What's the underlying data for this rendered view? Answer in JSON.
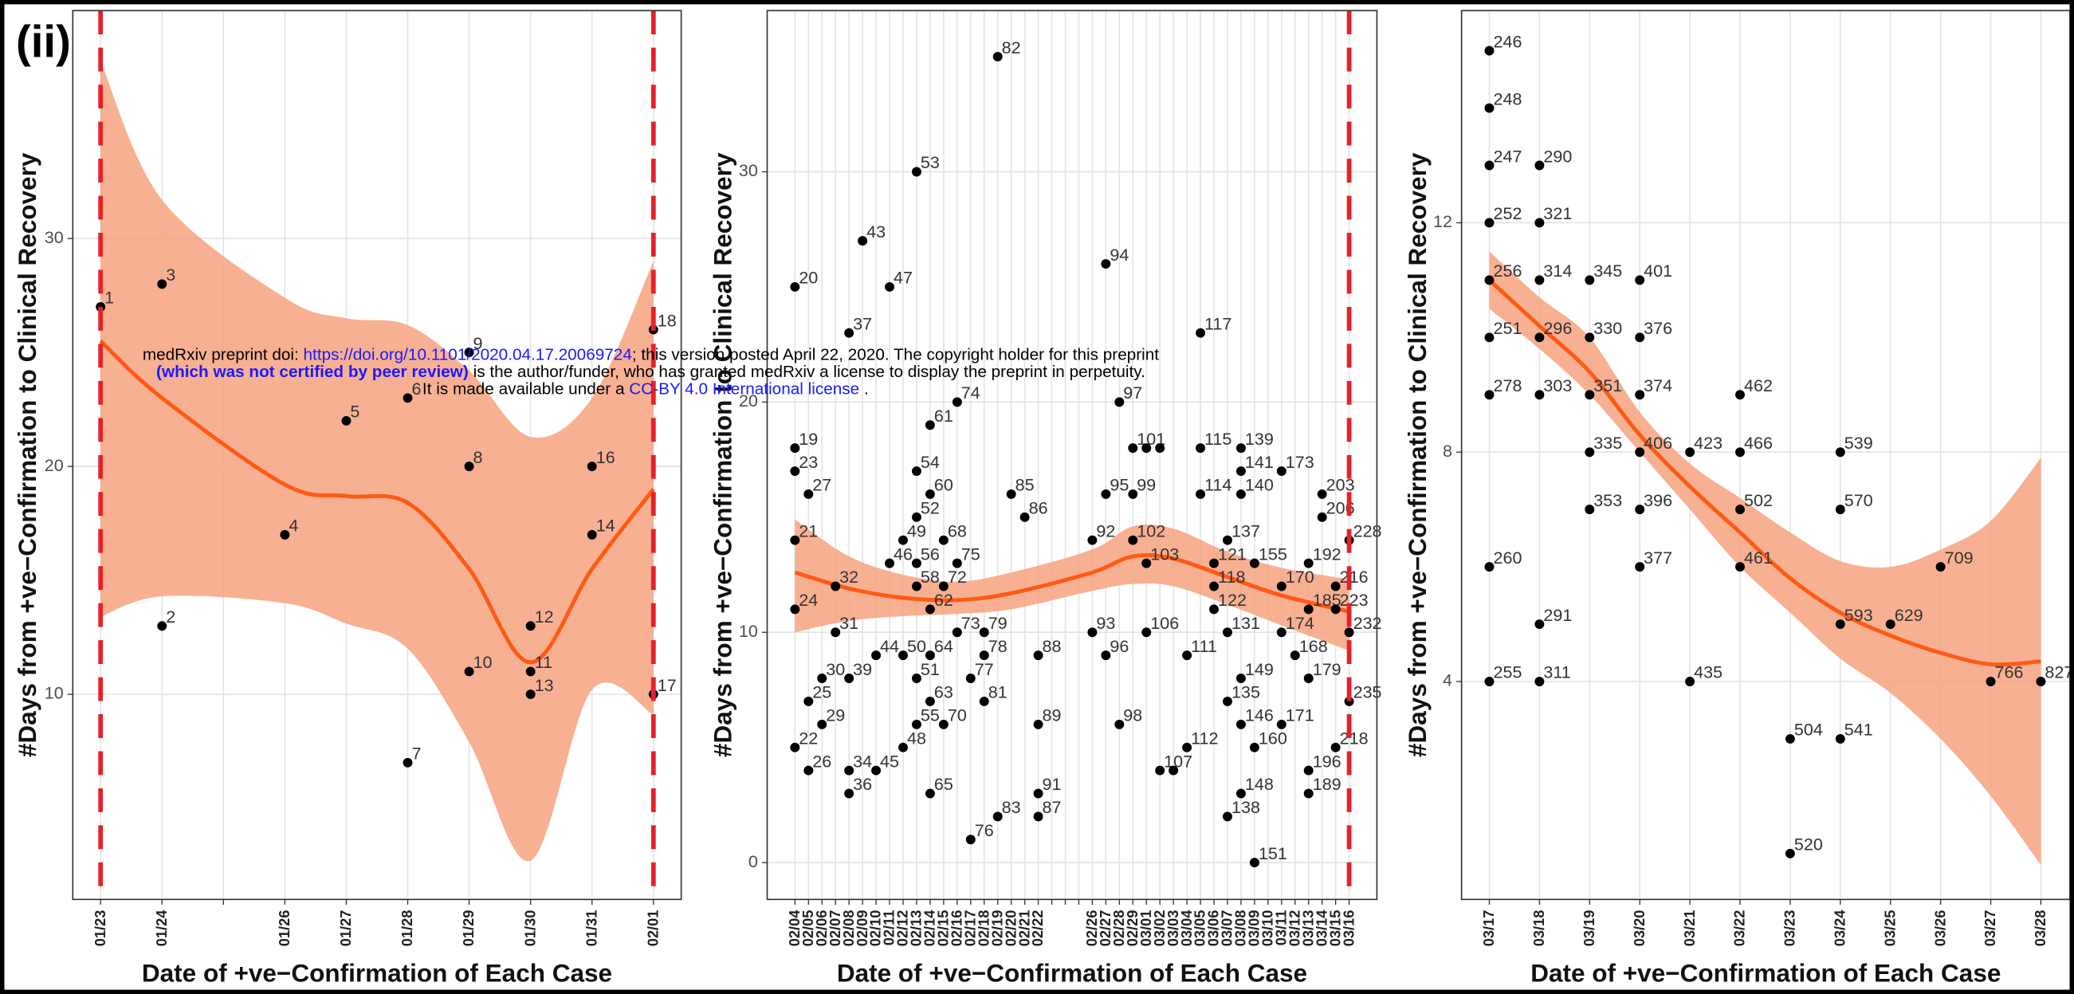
{
  "figure_label": "(ii)",
  "watermark": {
    "line1_prefix": "medRxiv preprint doi: ",
    "doi_link": "https://doi.org/10.1101/2020.04.17.20069724",
    "line1_suffix": "; this version posted April 22, 2020. The copyright holder for this preprint",
    "line2_bold": "(which was not certified by peer review)",
    "line2_rest": " is the author/funder, who has granted medRxiv a license to display the preprint in perpetuity.",
    "line3_prefix": "It is made available under a ",
    "license_link": "CC-BY 4.0 International license",
    "line3_suffix": " ."
  },
  "chart_data": [
    {
      "type": "scatter",
      "y_label": "#Days from +ve−Confirmation to Clinical Recovery",
      "x_label": "Date of +ve−Confirmation of Each Case",
      "categories": [
        "01/23",
        "01/24",
        null,
        "01/26",
        "01/27",
        "01/28",
        "01/29",
        "01/30",
        "01/31",
        "02/01"
      ],
      "ylim": [
        1,
        40
      ],
      "yticks": [
        10,
        20,
        30
      ],
      "grid": true,
      "points": {
        "color": "#000000",
        "x": [
          "01/23",
          "01/24",
          "01/24",
          "01/26",
          "01/27",
          "01/28",
          "01/28",
          "01/29",
          "01/29",
          "01/29",
          "01/30",
          "01/30",
          "01/30",
          "01/31",
          "01/31",
          "02/01",
          "02/01"
        ],
        "values": [
          27,
          28,
          13,
          17,
          22,
          23,
          7,
          25,
          20,
          11,
          13,
          11,
          10,
          20,
          17,
          26,
          10
        ],
        "labels": [
          1,
          3,
          2,
          4,
          5,
          6,
          7,
          9,
          8,
          10,
          12,
          11,
          13,
          16,
          14,
          18,
          17
        ]
      },
      "fit": {
        "color": "#ff5a14",
        "band_color": "#f7a27f",
        "x": [
          "01/23",
          "01/24",
          "01/26",
          "01/27",
          "01/28",
          "01/29",
          "01/30",
          "01/31",
          "02/01"
        ],
        "values": [
          25.5,
          23,
          19.2,
          18.7,
          18.4,
          15.5,
          11.4,
          15.5,
          19
        ],
        "lower": [
          13.4,
          14.3,
          14,
          13.1,
          12,
          7.9,
          2.7,
          10.2,
          9.1
        ],
        "upper": [
          37.8,
          31.7,
          27.4,
          26.5,
          26.2,
          24.2,
          21.3,
          23,
          29
        ]
      },
      "reference_lines": {
        "color": "#e8202a",
        "x": [
          "01/23",
          "02/01"
        ]
      }
    },
    {
      "type": "scatter",
      "y_label": "#Days from +ve−Confirmation to Clinical Recovery",
      "x_label": "Date of +ve−Confirmation of Each Case",
      "categories": [
        "02/04",
        "02/05",
        "02/06",
        "02/07",
        "02/08",
        "02/09",
        "02/10",
        "02/11",
        "02/12",
        "02/13",
        "02/14",
        "02/15",
        "02/16",
        "02/17",
        "02/18",
        "02/19",
        "02/20",
        "02/21",
        "02/22",
        null,
        null,
        null,
        "02/26",
        "02/27",
        "02/28",
        "02/29",
        "03/01",
        "03/02",
        "03/03",
        "03/04",
        "03/05",
        "03/06",
        "03/07",
        "03/08",
        "03/09",
        "03/10",
        "03/11",
        "03/12",
        "03/13",
        "03/14",
        "03/15",
        "03/16"
      ],
      "ylim": [
        -1.6,
        37
      ],
      "yticks": [
        0,
        10,
        20,
        30
      ],
      "grid": true,
      "points": {
        "color": "#000000",
        "x": [
          "02/04",
          "02/04",
          "02/04",
          "02/04",
          "02/04",
          "02/04",
          "02/05",
          "02/05",
          "02/05",
          "02/06",
          "02/06",
          "02/07",
          "02/07",
          "02/08",
          "02/08",
          "02/08",
          "02/08",
          "02/09",
          "02/10",
          "02/10",
          "02/11",
          "02/11",
          "02/12",
          "02/12",
          "02/12",
          "02/13",
          "02/13",
          "02/13",
          "02/13",
          "02/13",
          "02/13",
          "02/13",
          "02/14",
          "02/14",
          "02/14",
          "02/14",
          "02/14",
          "02/14",
          "02/15",
          "02/15",
          "02/15",
          "02/16",
          "02/16",
          "02/16",
          "02/17",
          "02/17",
          "02/18",
          "02/18",
          "02/18",
          "02/19",
          "02/19",
          "02/20",
          "02/21",
          "02/22",
          "02/22",
          "02/22",
          "02/22",
          "02/26",
          "02/26",
          "02/27",
          "02/27",
          "02/27",
          "02/28",
          "02/28",
          "02/29",
          "02/29",
          "02/29",
          "03/01",
          "03/01",
          "03/01",
          "03/02",
          "03/02",
          "03/03",
          "03/04",
          "03/04",
          "03/05",
          "03/05",
          "03/05",
          "03/06",
          "03/06",
          "03/06",
          "03/07",
          "03/07",
          "03/07",
          "03/07",
          "03/08",
          "03/08",
          "03/08",
          "03/08",
          "03/08",
          "03/08",
          "03/09",
          "03/09",
          "03/09",
          "03/11",
          "03/11",
          "03/11",
          "03/11",
          "03/12",
          "03/13",
          "03/13",
          "03/13",
          "03/13",
          "03/13",
          "03/14",
          "03/14",
          "03/15",
          "03/15",
          "03/15",
          "03/16",
          "03/16",
          "03/16"
        ],
        "values": [
          25,
          18,
          17,
          14,
          11,
          5,
          16,
          7,
          4,
          8,
          6,
          12,
          10,
          23,
          8,
          4,
          3,
          27,
          9,
          4,
          25,
          13,
          14,
          9,
          5,
          30,
          17,
          15,
          13,
          12,
          8,
          6,
          19,
          16,
          11,
          9,
          7,
          3,
          14,
          12,
          6,
          20,
          13,
          10,
          8,
          1,
          10,
          9,
          7,
          35,
          2,
          16,
          15,
          9,
          6,
          3,
          2,
          14,
          10,
          26,
          16,
          9,
          20,
          6,
          18,
          16,
          14,
          18,
          13,
          10,
          18,
          4,
          4,
          9,
          5,
          23,
          18,
          16,
          13,
          12,
          11,
          14,
          10,
          7,
          2,
          18,
          17,
          16,
          8,
          6,
          3,
          13,
          5,
          0,
          17,
          12,
          10,
          6,
          9,
          13,
          11,
          8,
          4,
          3,
          16,
          15,
          12,
          11,
          5,
          14,
          10,
          7
        ],
        "labels": [
          20,
          19,
          23,
          21,
          24,
          22,
          27,
          25,
          26,
          30,
          29,
          32,
          31,
          37,
          39,
          34,
          36,
          43,
          44,
          45,
          47,
          46,
          49,
          50,
          48,
          53,
          54,
          52,
          56,
          58,
          51,
          55,
          61,
          60,
          62,
          64,
          63,
          65,
          68,
          72,
          70,
          74,
          75,
          73,
          77,
          76,
          79,
          78,
          81,
          82,
          83,
          85,
          86,
          88,
          89,
          91,
          87,
          92,
          93,
          94,
          95,
          96,
          97,
          98,
          101,
          99,
          102,
          null,
          103,
          106,
          null,
          107,
          null,
          111,
          112,
          117,
          115,
          114,
          121,
          118,
          122,
          137,
          131,
          135,
          138,
          139,
          141,
          140,
          149,
          146,
          148,
          155,
          160,
          151,
          173,
          170,
          174,
          171,
          168,
          192,
          185,
          179,
          196,
          189,
          203,
          206,
          216,
          223,
          218,
          228,
          232,
          235
        ]
      },
      "fit": {
        "color": "#ff5a14",
        "band_color": "#f7a27f",
        "x": [
          "02/04",
          "02/08",
          "02/12",
          "02/16",
          "02/20",
          "02/26",
          "02/29",
          "03/03",
          "03/07",
          "03/11",
          "03/16"
        ],
        "values": [
          12.6,
          11.9,
          11.5,
          11.4,
          11.7,
          12.6,
          13.3,
          13.2,
          12.4,
          11.6,
          10.9
        ],
        "lower": [
          10,
          10.5,
          10.7,
          10.8,
          11,
          11.8,
          12.1,
          12,
          11.2,
          10.3,
          9.2
        ],
        "upper": [
          14.9,
          13.3,
          12.5,
          12.2,
          12.6,
          13.6,
          14.6,
          14.5,
          13.5,
          12.8,
          12.3
        ]
      },
      "reference_lines": {
        "color": "#e8202a",
        "x": [
          "03/16"
        ]
      }
    },
    {
      "type": "scatter",
      "y_label": "#Days from +ve−Confirmation to Clinical Recovery",
      "x_label": "Date of +ve−Confirmation of Each Case",
      "categories": [
        "03/17",
        "03/18",
        "03/19",
        "03/20",
        "03/21",
        "03/22",
        "03/23",
        "03/24",
        "03/25",
        "03/26",
        "03/27",
        "03/28"
      ],
      "ylim": [
        0.2,
        15.7
      ],
      "yticks": [
        4,
        8,
        12
      ],
      "grid": true,
      "points": {
        "color": "#000000",
        "x": [
          "03/17",
          "03/17",
          "03/17",
          "03/17",
          "03/17",
          "03/17",
          "03/17",
          "03/17",
          "03/17",
          "03/18",
          "03/18",
          "03/18",
          "03/18",
          "03/18",
          "03/18",
          "03/18",
          "03/19",
          "03/19",
          "03/19",
          "03/19",
          "03/19",
          "03/20",
          "03/20",
          "03/20",
          "03/20",
          "03/20",
          "03/20",
          "03/21",
          "03/21",
          "03/22",
          "03/22",
          "03/22",
          "03/22",
          "03/23",
          "03/23",
          "03/24",
          "03/24",
          "03/24",
          "03/24",
          "03/25",
          "03/26",
          "03/27",
          "03/28"
        ],
        "values": [
          15,
          14,
          13,
          12,
          11,
          10,
          9,
          6,
          4,
          13,
          12,
          11,
          10,
          9,
          5,
          4,
          11,
          10,
          9,
          8,
          7,
          11,
          10,
          9,
          8,
          7,
          6,
          8,
          4,
          9,
          8,
          7,
          6,
          3,
          1,
          8,
          7,
          5,
          3,
          5,
          6,
          4,
          4
        ],
        "labels": [
          246,
          248,
          247,
          252,
          256,
          251,
          278,
          260,
          255,
          290,
          321,
          314,
          296,
          303,
          291,
          311,
          345,
          330,
          351,
          335,
          353,
          401,
          376,
          374,
          406,
          396,
          377,
          423,
          435,
          462,
          466,
          502,
          461,
          504,
          520,
          539,
          570,
          593,
          541,
          629,
          709,
          766,
          827
        ]
      },
      "fit": {
        "color": "#ff5a14",
        "band_color": "#f7a27f",
        "x": [
          "03/17",
          "03/18",
          "03/19",
          "03/20",
          "03/21",
          "03/22",
          "03/23",
          "03/24",
          "03/25",
          "03/26",
          "03/27",
          "03/28"
        ],
        "values": [
          11,
          10.2,
          9.4,
          8.3,
          7.4,
          6.6,
          5.8,
          5.2,
          4.8,
          4.5,
          4.3,
          4.35
        ],
        "lower": [
          10.5,
          9.8,
          9,
          8,
          7,
          6,
          5.2,
          4.4,
          3.8,
          3,
          2,
          0.8
        ],
        "upper": [
          11.5,
          10.7,
          10,
          8.7,
          7.8,
          7.2,
          6.6,
          6.1,
          6,
          6.3,
          6.8,
          7.9
        ]
      }
    }
  ]
}
